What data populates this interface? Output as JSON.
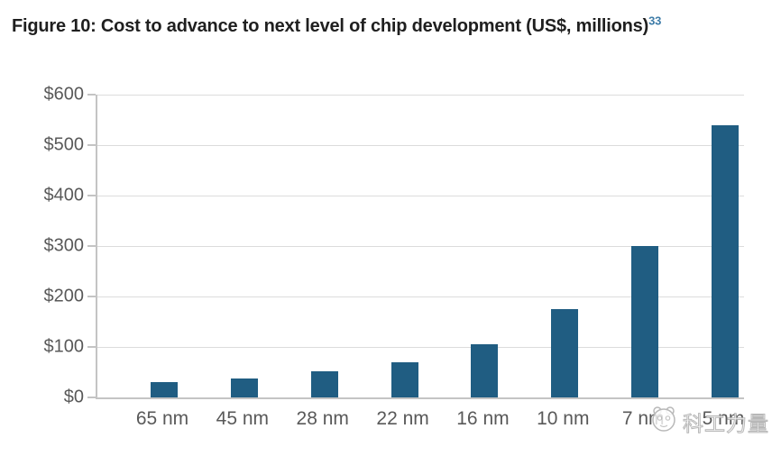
{
  "header": {
    "title": "Figure 10: Cost to advance to next level of chip development (US$, millions)",
    "footnote_marker": "33"
  },
  "chart_data": {
    "type": "bar",
    "title": "Figure 10: Cost to advance to next level of chip development (US$, millions)",
    "categories": [
      "65 nm",
      "45 nm",
      "28 nm",
      "22 nm",
      "16 nm",
      "10 nm",
      "7 nm",
      "5 nm"
    ],
    "values": [
      30,
      38,
      51,
      70,
      106,
      175,
      300,
      540
    ],
    "xlabel": "",
    "ylabel": "",
    "ylim": [
      0,
      600
    ],
    "ytick_step": 100,
    "ytick_labels": [
      "$0",
      "$100",
      "$200",
      "$300",
      "$400",
      "$500",
      "$600"
    ],
    "grid": true,
    "legend": "none",
    "bar_color": "#205d82",
    "gridline_color": "#dcdcdc",
    "axis_color": "#c4c4c4",
    "tick_label_color": "#595959",
    "footnote_color": "#3e7ca8"
  },
  "watermark": {
    "text": "科工力量",
    "logo": "panda-face-logo"
  }
}
